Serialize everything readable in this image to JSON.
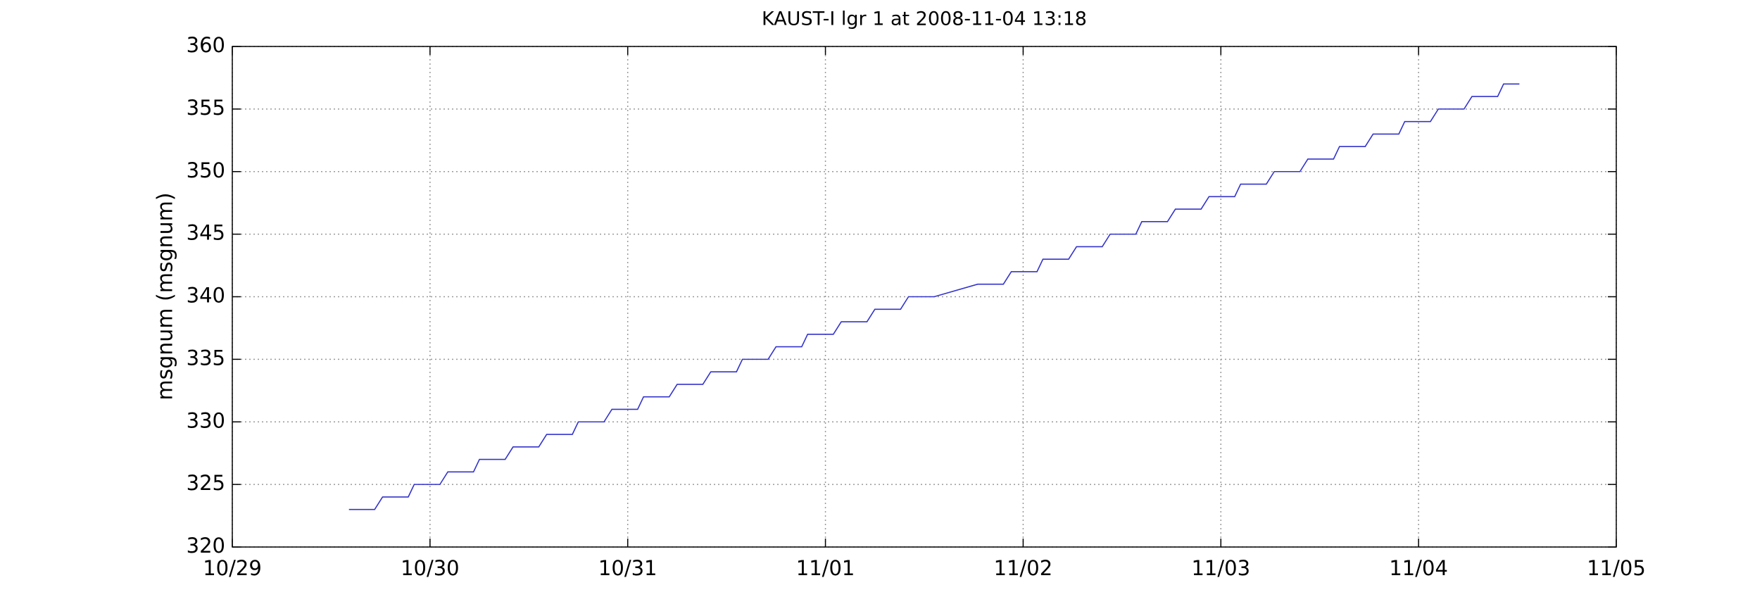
{
  "chart_data": {
    "type": "line",
    "title": "KAUST-I lgr 1 at 2008-11-04 13:18",
    "y_label": "msgnum (msgnum)",
    "color": "#3333cc",
    "grid": true,
    "x": [
      0.59,
      0.72,
      0.76,
      0.89,
      0.92,
      1.05,
      1.09,
      1.22,
      1.25,
      1.38,
      1.42,
      1.55,
      1.59,
      1.72,
      1.75,
      1.88,
      1.92,
      2.05,
      2.08,
      2.21,
      2.25,
      2.38,
      2.42,
      2.55,
      2.58,
      2.71,
      2.75,
      2.88,
      2.91,
      3.04,
      3.08,
      3.21,
      3.25,
      3.38,
      3.42,
      3.55,
      3.77,
      3.9,
      3.94,
      4.07,
      4.1,
      4.23,
      4.27,
      4.4,
      4.44,
      4.57,
      4.6,
      4.73,
      4.77,
      4.9,
      4.94,
      5.07,
      5.1,
      5.23,
      5.27,
      5.4,
      5.44,
      5.57,
      5.6,
      5.73,
      5.77,
      5.9,
      5.93,
      6.06,
      6.1,
      6.23,
      6.27,
      6.4,
      6.43,
      6.51
    ],
    "values": [
      323,
      323,
      324,
      324,
      325,
      325,
      326,
      326,
      327,
      327,
      328,
      328,
      329,
      329,
      330,
      330,
      331,
      331,
      332,
      332,
      333,
      333,
      334,
      334,
      335,
      335,
      336,
      336,
      337,
      337,
      338,
      338,
      339,
      339,
      340,
      340,
      341,
      341,
      342,
      342,
      343,
      343,
      344,
      344,
      345,
      345,
      346,
      346,
      347,
      347,
      348,
      348,
      349,
      349,
      350,
      350,
      351,
      351,
      352,
      352,
      353,
      353,
      354,
      354,
      355,
      355,
      356,
      356,
      357,
      357
    ],
    "xlim": [
      0,
      7
    ],
    "xticks": [
      {
        "value": 0,
        "label": "10/29"
      },
      {
        "value": 1,
        "label": "10/30"
      },
      {
        "value": 2,
        "label": "10/31"
      },
      {
        "value": 3,
        "label": "11/01"
      },
      {
        "value": 4,
        "label": "11/02"
      },
      {
        "value": 5,
        "label": "11/03"
      },
      {
        "value": 6,
        "label": "11/04"
      },
      {
        "value": 7,
        "label": "11/05"
      }
    ],
    "ylim": [
      320,
      360
    ],
    "yticks": [
      320,
      325,
      330,
      335,
      340,
      345,
      350,
      355,
      360
    ]
  }
}
